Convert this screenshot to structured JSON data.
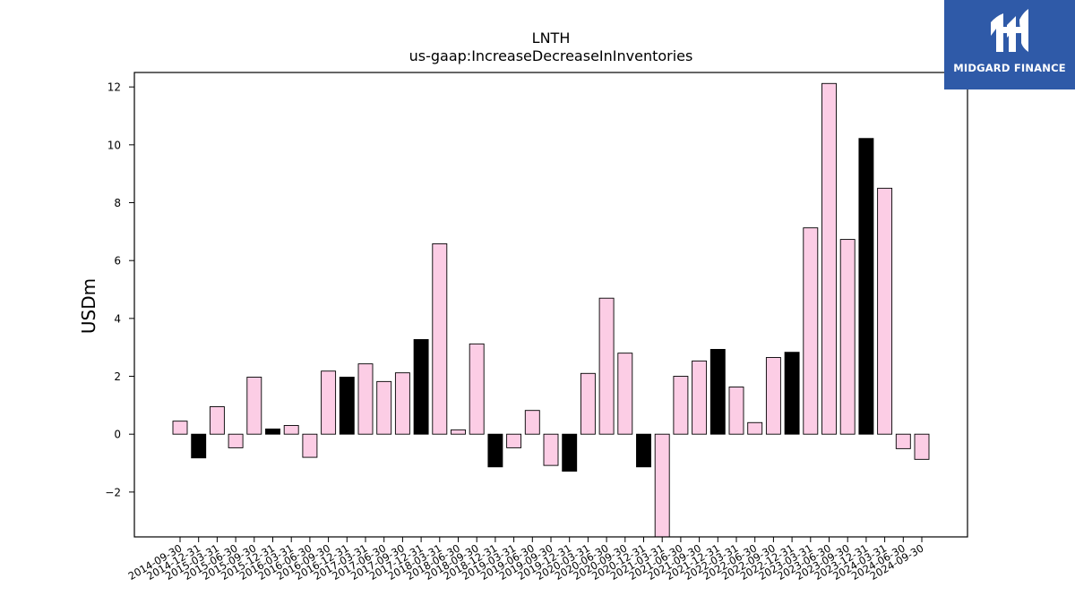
{
  "chart_data": {
    "type": "bar",
    "title": "LNTH",
    "subtitle": "us-gaap:IncreaseDecreaseInInventories",
    "xlabel": "",
    "ylabel": "USDm",
    "ylim": [
      -3.55,
      12.5
    ],
    "yticks": [
      -2,
      0,
      2,
      4,
      6,
      8,
      10,
      12
    ],
    "ytick_labels": [
      "−2",
      "0",
      "2",
      "4",
      "6",
      "8",
      "10",
      "12"
    ],
    "categories": [
      "2014-09-30",
      "2014-12-31",
      "2015-03-31",
      "2015-06-30",
      "2015-09-30",
      "2015-12-31",
      "2016-03-31",
      "2016-06-30",
      "2016-09-30",
      "2016-12-31",
      "2017-03-31",
      "2017-06-30",
      "2017-09-30",
      "2017-12-31",
      "2018-03-31",
      "2018-06-30",
      "2018-09-30",
      "2018-12-31",
      "2019-03-31",
      "2019-06-30",
      "2019-09-30",
      "2019-12-31",
      "2020-03-31",
      "2020-06-30",
      "2020-09-30",
      "2020-12-31",
      "2021-03-31",
      "2021-06-30",
      "2021-09-30",
      "2021-12-31",
      "2022-03-31",
      "2022-06-30",
      "2022-09-30",
      "2022-12-31",
      "2023-03-31",
      "2023-06-30",
      "2023-09-30",
      "2023-12-31",
      "2024-03-31",
      "2024-06-30",
      "2024-09-30"
    ],
    "values": [
      0.45,
      -0.82,
      0.95,
      -0.47,
      1.97,
      0.18,
      0.3,
      -0.8,
      2.18,
      1.97,
      2.43,
      1.82,
      2.12,
      3.27,
      6.58,
      0.15,
      3.12,
      -1.13,
      -0.47,
      0.82,
      -1.08,
      -1.28,
      2.1,
      4.7,
      2.8,
      -1.13,
      -3.55,
      2.0,
      2.53,
      2.93,
      1.63,
      0.4,
      2.65,
      2.83,
      7.13,
      12.12,
      6.73,
      10.22,
      8.5,
      -0.5,
      -0.87
    ],
    "bar_colors": [
      "#fccde5",
      "#000000",
      "#fccde5",
      "#fccde5",
      "#fccde5",
      "#000000",
      "#fccde5",
      "#fccde5",
      "#fccde5",
      "#000000",
      "#fccde5",
      "#fccde5",
      "#fccde5",
      "#000000",
      "#fccde5",
      "#fccde5",
      "#fccde5",
      "#000000",
      "#fccde5",
      "#fccde5",
      "#fccde5",
      "#000000",
      "#fccde5",
      "#fccde5",
      "#fccde5",
      "#000000",
      "#fccde5",
      "#fccde5",
      "#fccde5",
      "#000000",
      "#fccde5",
      "#fccde5",
      "#fccde5",
      "#000000",
      "#fccde5",
      "#fccde5",
      "#fccde5",
      "#000000",
      "#fccde5",
      "#fccde5",
      "#fccde5"
    ],
    "grid": false
  },
  "logo": {
    "text": "MIDGARD FINANCE",
    "background": "#2f5aa8"
  }
}
